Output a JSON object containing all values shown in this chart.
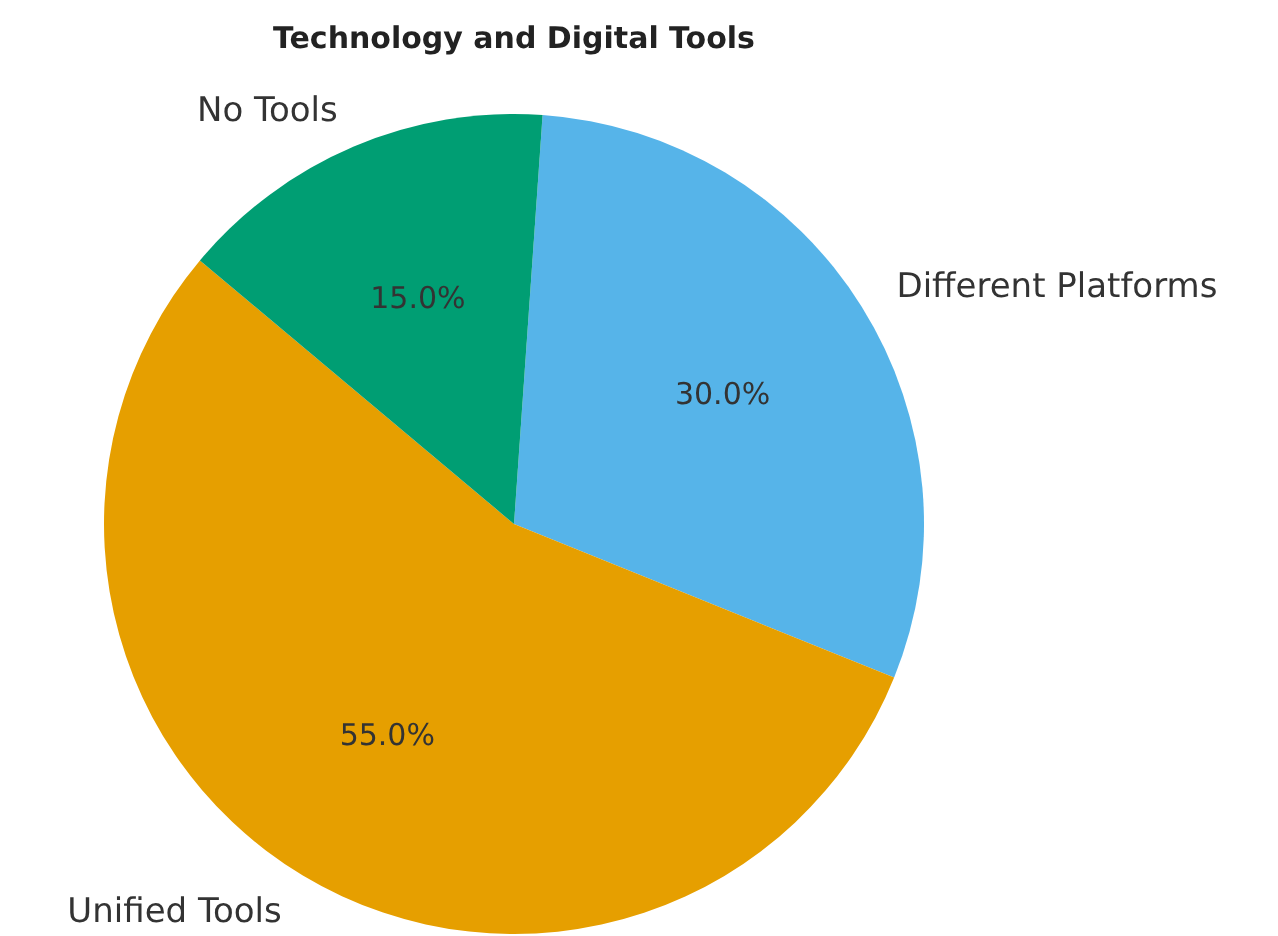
{
  "chart_data": {
    "type": "pie",
    "title": "Technology and Digital Tools",
    "categories": [
      "Different Platforms",
      "Unified Tools",
      "No Tools"
    ],
    "values": [
      30,
      55,
      15
    ],
    "colors": [
      "#56b4e9",
      "#e69f00",
      "#009e73"
    ],
    "value_labels": [
      "30.0%",
      "55.0%",
      "15.0%"
    ],
    "legend": false
  }
}
